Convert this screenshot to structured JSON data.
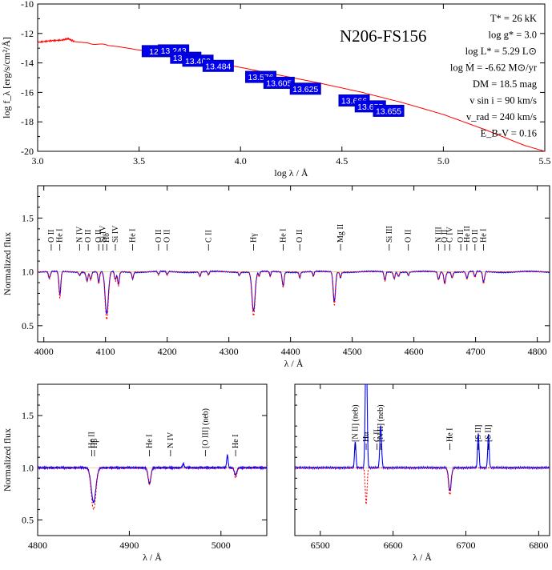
{
  "chart_data": [
    {
      "type": "line",
      "title": "N206-FS156",
      "xlabel": "log λ / Å",
      "ylabel": "log f_λ [erg/s/cm²/Å]",
      "xlim": [
        3.0,
        5.5
      ],
      "ylim": [
        -20,
        -10
      ],
      "xticks": [
        "3.0",
        "3.5",
        "4.0",
        "4.5",
        "5.0",
        "5.5"
      ],
      "yticks": [
        "-10",
        "-12",
        "-14",
        "-16",
        "-18",
        "-20"
      ],
      "sed_line": {
        "x": [
          3.0,
          3.06,
          3.12,
          3.15,
          3.18,
          3.25,
          3.4,
          3.6,
          3.8,
          4.0,
          4.2,
          4.4,
          4.6,
          4.8,
          5.0,
          5.2,
          5.4,
          5.5
        ],
        "y": [
          -12.6,
          -12.5,
          -12.45,
          -12.35,
          -12.55,
          -12.65,
          -12.9,
          -13.35,
          -13.8,
          -14.3,
          -14.85,
          -15.4,
          -16.0,
          -16.7,
          -17.5,
          -18.5,
          -19.6,
          -20.0
        ],
        "color": "#ff0000"
      },
      "photometry": [
        {
          "label": "12.7",
          "x": 3.59,
          "y": -13.2
        },
        {
          "label": "13.243",
          "x": 3.67,
          "y": -13.15
        },
        {
          "label": "13.378",
          "x": 3.73,
          "y": -13.65
        },
        {
          "label": "13.469",
          "x": 3.79,
          "y": -13.85
        },
        {
          "label": "13.484",
          "x": 3.89,
          "y": -14.2
        },
        {
          "label": "13.576",
          "x": 4.1,
          "y": -14.95
        },
        {
          "label": "13.605",
          "x": 4.19,
          "y": -15.35
        },
        {
          "label": "13.625",
          "x": 4.32,
          "y": -15.75
        },
        {
          "label": "13.666",
          "x": 4.56,
          "y": -16.55
        },
        {
          "label": "13.655",
          "x": 4.64,
          "y": -16.95
        },
        {
          "label": "13.655",
          "x": 4.73,
          "y": -17.25
        }
      ],
      "parameters": [
        "T* = 26 kK",
        "log g* = 3.0",
        "log L* = 5.29 L⊙",
        "log Ṁ = -6.62 M⊙/yr",
        "DM = 18.5 mag",
        "v sin i = 90 km/s",
        "v_rad = 240 km/s",
        "E_B-V = 0.16"
      ]
    },
    {
      "type": "line",
      "xlabel": "λ / Å",
      "ylabel": "Normalized flux",
      "xlim": [
        3990,
        4820
      ],
      "ylim": [
        0.35,
        1.8
      ],
      "xticks": [
        "4000",
        "4100",
        "4200",
        "4300",
        "4400",
        "4500",
        "4600",
        "4700",
        "4800"
      ],
      "yticks": [
        "0.5",
        "1.0",
        "1.5"
      ],
      "observed_color": "#0000ff",
      "model_color": "#ff0000",
      "lines": [
        {
          "w": 4009,
          "d": 0.06,
          "s": 1.5
        },
        {
          "w": 4026,
          "d": 0.22,
          "s": 1.5
        },
        {
          "w": 4058,
          "d": 0.03,
          "s": 1.2
        },
        {
          "w": 4070,
          "d": 0.08,
          "s": 1.5
        },
        {
          "w": 4076,
          "d": 0.07,
          "s": 1.3
        },
        {
          "w": 4089,
          "d": 0.1,
          "s": 1.3
        },
        {
          "w": 4102,
          "d": 0.4,
          "s": 2.6
        },
        {
          "w": 4116,
          "d": 0.08,
          "s": 1.3
        },
        {
          "w": 4121,
          "d": 0.12,
          "s": 1.4
        },
        {
          "w": 4144,
          "d": 0.06,
          "s": 1.3
        },
        {
          "w": 4186,
          "d": 0.03,
          "s": 1.2
        },
        {
          "w": 4200,
          "d": 0.03,
          "s": 1.2
        },
        {
          "w": 4253,
          "d": 0.04,
          "s": 1.2
        },
        {
          "w": 4267,
          "d": 0.03,
          "s": 1.2
        },
        {
          "w": 4317,
          "d": 0.03,
          "s": 1.2
        },
        {
          "w": 4340,
          "d": 0.37,
          "s": 2.5
        },
        {
          "w": 4349,
          "d": 0.04,
          "s": 1.2
        },
        {
          "w": 4367,
          "d": 0.04,
          "s": 1.2
        },
        {
          "w": 4388,
          "d": 0.13,
          "s": 1.5
        },
        {
          "w": 4415,
          "d": 0.05,
          "s": 1.2
        },
        {
          "w": 4437,
          "d": 0.04,
          "s": 1.2
        },
        {
          "w": 4471,
          "d": 0.28,
          "s": 1.8
        },
        {
          "w": 4481,
          "d": 0.05,
          "s": 1.2
        },
        {
          "w": 4553,
          "d": 0.08,
          "s": 1.3
        },
        {
          "w": 4568,
          "d": 0.06,
          "s": 1.2
        },
        {
          "w": 4575,
          "d": 0.04,
          "s": 1.2
        },
        {
          "w": 4591,
          "d": 0.03,
          "s": 1.2
        },
        {
          "w": 4640,
          "d": 0.07,
          "s": 1.4
        },
        {
          "w": 4650,
          "d": 0.1,
          "s": 1.5
        },
        {
          "w": 4662,
          "d": 0.05,
          "s": 1.3
        },
        {
          "w": 4686,
          "d": 0.06,
          "s": 1.5
        },
        {
          "w": 4699,
          "d": 0.05,
          "s": 1.3
        },
        {
          "w": 4713,
          "d": 0.1,
          "s": 1.5
        }
      ],
      "annotations": [
        {
          "label": "O II",
          "w": 4012
        },
        {
          "label": "He I",
          "w": 4026
        },
        {
          "label": "N IV",
          "w": 4058
        },
        {
          "label": "O II",
          "w": 4072
        },
        {
          "label": "O II",
          "w": 4089
        },
        {
          "label": "Si IV",
          "w": 4096
        },
        {
          "label": "Hδ",
          "w": 4102
        },
        {
          "label": "Si IV",
          "w": 4116
        },
        {
          "label": "He I",
          "w": 4144
        },
        {
          "label": "O II",
          "w": 4186
        },
        {
          "label": "O II",
          "w": 4200
        },
        {
          "label": "C II",
          "w": 4267
        },
        {
          "label": "Hγ",
          "w": 4340
        },
        {
          "label": "He I",
          "w": 4388
        },
        {
          "label": "O II",
          "w": 4415
        },
        {
          "label": "Mg II",
          "w": 4481
        },
        {
          "label": "Si III",
          "w": 4560
        },
        {
          "label": "O II",
          "w": 4591
        },
        {
          "label": "N III",
          "w": 4640
        },
        {
          "label": "O II",
          "w": 4650
        },
        {
          "label": "C IV",
          "w": 4658
        },
        {
          "label": "O II",
          "w": 4676
        },
        {
          "label": "He II",
          "w": 4686
        },
        {
          "label": "O II",
          "w": 4699
        },
        {
          "label": "He I",
          "w": 4713
        }
      ]
    },
    {
      "type": "line",
      "xlabel": "λ / Å",
      "ylabel": "Normalized flux",
      "xlim": [
        4800,
        5050
      ],
      "ylim": [
        0.35,
        1.8
      ],
      "xticks": [
        "4800",
        "4900",
        "5000"
      ],
      "yticks": [
        "0.5",
        "1.0",
        "1.5"
      ],
      "observed_color": "#0000ff",
      "model_color": "#ff0000",
      "lines": [
        {
          "w": 4861,
          "d": 0.33,
          "s": 2.5,
          "m": 0.4
        },
        {
          "w": 4922,
          "d": 0.15,
          "s": 1.5,
          "m": 0.16
        },
        {
          "w": 4959,
          "d": -0.04,
          "s": 0.8,
          "m": 0
        },
        {
          "w": 5007,
          "d": -0.12,
          "s": 0.8,
          "m": 0
        },
        {
          "w": 5016,
          "d": 0.07,
          "s": 1.3,
          "m": 0.1
        }
      ],
      "annotations": [
        {
          "label": "He II",
          "w": 4859
        },
        {
          "label": "Hβ",
          "w": 4862
        },
        {
          "label": "He I",
          "w": 4922
        },
        {
          "label": "N IV",
          "w": 4945
        },
        {
          "label": "[O III] (neb)",
          "w": 4983
        },
        {
          "label": "He I",
          "w": 5016
        }
      ]
    },
    {
      "type": "line",
      "xlabel": "λ / Å",
      "ylabel": "",
      "xlim": [
        6465,
        6815
      ],
      "ylim": [
        0.35,
        1.8
      ],
      "xticks": [
        "6500",
        "6600",
        "6700",
        "6800"
      ],
      "yticks": [],
      "observed_color": "#0000ff",
      "model_color": "#ff0000",
      "lines": [
        {
          "w": 6548,
          "d": -0.25,
          "s": 1.0,
          "m": 0
        },
        {
          "w": 6563,
          "d": -1.3,
          "s": 1.2,
          "m": 0.35
        },
        {
          "w": 6583,
          "d": -0.4,
          "s": 1.2,
          "m": 0
        },
        {
          "w": 6678,
          "d": 0.22,
          "s": 1.8,
          "m": 0.26
        },
        {
          "w": 6717,
          "d": -0.33,
          "s": 1.0,
          "m": 0
        },
        {
          "w": 6731,
          "d": -0.32,
          "s": 1.0,
          "m": 0
        }
      ],
      "annotations": [
        {
          "label": "[N II] (neb)",
          "w": 6548
        },
        {
          "label": "Hα",
          "w": 6563
        },
        {
          "label": "C II",
          "w": 6578
        },
        {
          "label": "[N II] (neb)",
          "w": 6583
        },
        {
          "label": "He I",
          "w": 6678
        },
        {
          "label": "[S II]",
          "w": 6717
        },
        {
          "label": "[S II]",
          "w": 6731
        }
      ]
    }
  ]
}
